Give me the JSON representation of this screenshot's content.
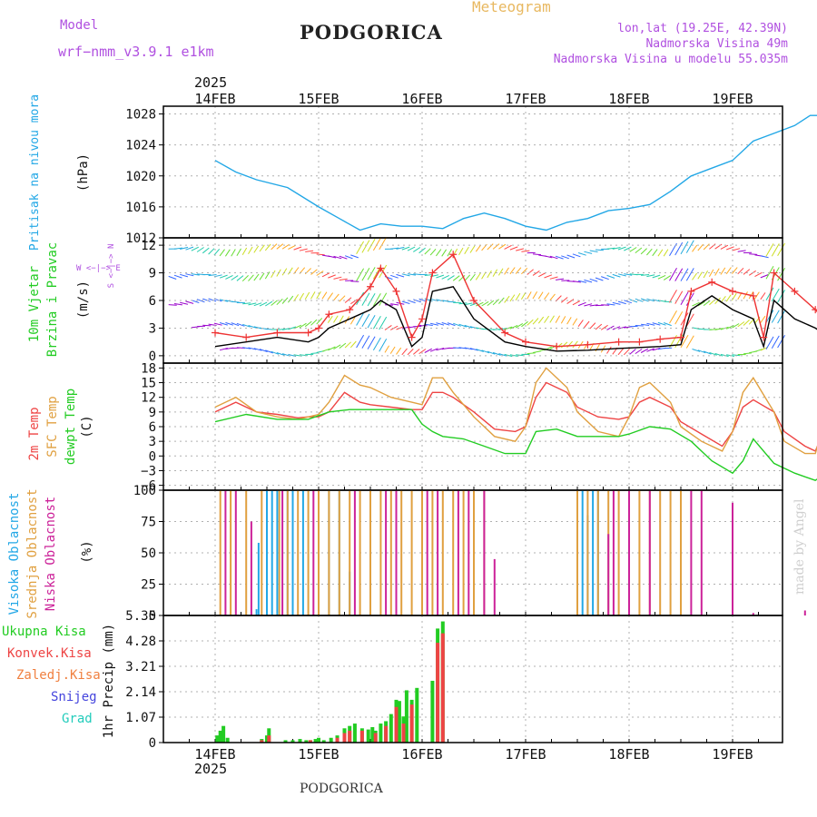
{
  "header": {
    "model_label": "Model",
    "model_name": "wrf−nmm_v3.9.1  e1km",
    "station": "PODGORICA",
    "title": "Meteogram",
    "lonlat": "lon,lat (19.25E, 42.39N)",
    "altitude": "Nadmorska Visina 49m",
    "model_altitude": "Nadmorska Visina u modelu 55.035m",
    "year_top": "2025",
    "year_bottom": "2025",
    "station_bottom": "PODGORICA",
    "credit": "made by Angel",
    "dates": [
      "14FEB",
      "15FEB",
      "16FEB",
      "17FEB",
      "18FEB",
      "19FEB"
    ]
  },
  "colors": {
    "pressure": "#22a7e6",
    "t2m": "#ee4444",
    "sfc": "#e0a040",
    "dewpt": "#22cc22",
    "wind_speed": "#000000",
    "gust": "#ee3333",
    "high_cloud": "#22a7e6",
    "mid_cloud": "#e0a040",
    "low_cloud": "#cc2299",
    "total_precip": "#22cc22",
    "conv_precip": "#ee4444",
    "frz": "#f08040",
    "snow": "#4444dd",
    "grad": "#22ccbb",
    "title_orange": "#e8b860",
    "violet": "#b050e0"
  },
  "chart_data": [
    {
      "type": "line",
      "name": "pressure",
      "ylabel_lines": [
        "Pritisak na nivou mora",
        "(hPa)"
      ],
      "ylim": [
        1012,
        1029
      ],
      "yticks": [
        1012,
        1016,
        1020,
        1024,
        1028
      ],
      "grid": true,
      "series": [
        {
          "x": [
            0,
            0.2,
            0.4,
            0.7,
            1.0,
            1.2,
            1.4,
            1.6,
            1.8,
            2.0,
            2.2,
            2.4,
            2.6,
            2.8,
            3.0,
            3.2,
            3.4,
            3.6,
            3.8,
            4.0,
            4.2,
            4.4,
            4.6,
            4.8,
            5.0,
            5.2,
            5.4,
            5.6,
            5.75,
            5.9,
            6.0
          ],
          "y": [
            1022,
            1020.5,
            1019.5,
            1018.5,
            1016,
            1014.5,
            1013,
            1013.8,
            1013.5,
            1013.5,
            1013.2,
            1014.5,
            1015.2,
            1014.5,
            1013.5,
            1013,
            1014,
            1014.5,
            1015.5,
            1015.8,
            1016.3,
            1018,
            1020,
            1021,
            1022,
            1024.5,
            1025.5,
            1026.5,
            1027.8,
            1027.8,
            1027
          ]
        }
      ]
    },
    {
      "type": "line",
      "name": "wind",
      "ylabel_lines": [
        "10m Vjetar",
        "Brzina i Pravac",
        "(m/s)"
      ],
      "compass": "W <−|−> E",
      "compass_vertical": "S <−|−> N",
      "ylim": [
        -0.8,
        12.8
      ],
      "yticks": [
        0,
        3,
        6,
        9,
        12
      ],
      "grid": true,
      "series": [
        {
          "name": "speed",
          "x": [
            0,
            0.3,
            0.6,
            0.9,
            1.0,
            1.1,
            1.3,
            1.5,
            1.6,
            1.75,
            1.9,
            2.0,
            2.1,
            2.3,
            2.5,
            2.8,
            3.0,
            3.3,
            3.6,
            3.9,
            4.1,
            4.3,
            4.5,
            4.6,
            4.8,
            5.0,
            5.2,
            5.3,
            5.4,
            5.6,
            5.8,
            6.0
          ],
          "y": [
            1,
            1.5,
            2,
            1.5,
            2,
            3,
            4,
            5,
            6,
            5,
            1,
            2,
            7,
            7.5,
            4,
            1.5,
            1,
            0.5,
            0.6,
            0.8,
            0.9,
            1.0,
            1.2,
            5,
            6.5,
            5,
            4,
            1,
            6,
            4,
            3,
            1.5
          ]
        },
        {
          "name": "gust",
          "x": [
            0,
            0.3,
            0.6,
            0.9,
            1.0,
            1.1,
            1.3,
            1.5,
            1.6,
            1.75,
            1.9,
            2.0,
            2.1,
            2.3,
            2.5,
            2.8,
            3.0,
            3.3,
            3.6,
            3.9,
            4.1,
            4.3,
            4.5,
            4.6,
            4.8,
            5.0,
            5.2,
            5.3,
            5.4,
            5.6,
            5.8,
            6.0
          ],
          "y": [
            2.5,
            2,
            2.5,
            2.5,
            3,
            4.5,
            5,
            7.5,
            9.5,
            7,
            2,
            4,
            9,
            11,
            6,
            2.5,
            1.5,
            1,
            1.2,
            1.5,
            1.5,
            1.8,
            2,
            7,
            8,
            7,
            6.5,
            2,
            9,
            7,
            5,
            2.5
          ]
        }
      ]
    },
    {
      "type": "line",
      "name": "temperature",
      "ylabel_lines": [
        "2m Temp",
        "SFC Temp",
        "dewpt Temp",
        "(C)"
      ],
      "ylim": [
        -7,
        19
      ],
      "yticks": [
        -6,
        -3,
        0,
        3,
        6,
        9,
        12,
        15,
        18
      ],
      "grid": true,
      "series": [
        {
          "name": "2m Temp",
          "x": [
            0,
            0.2,
            0.4,
            0.6,
            0.8,
            0.9,
            1.0,
            1.1,
            1.25,
            1.4,
            1.5,
            1.7,
            1.9,
            2.0,
            2.1,
            2.2,
            2.3,
            2.5,
            2.7,
            2.9,
            3.0,
            3.1,
            3.2,
            3.4,
            3.5,
            3.7,
            3.9,
            4.0,
            4.1,
            4.2,
            4.4,
            4.5,
            4.7,
            4.9,
            5.0,
            5.1,
            5.2,
            5.4,
            5.5,
            5.7,
            5.8,
            5.9,
            6.0
          ],
          "y": [
            9,
            11,
            9,
            8.5,
            7.8,
            8,
            8,
            9,
            13,
            11,
            10.5,
            10,
            9.5,
            9.5,
            13,
            13,
            12,
            9,
            5.5,
            5,
            6,
            12,
            15,
            13,
            10,
            8,
            7.5,
            8,
            11,
            12,
            10,
            7,
            4.5,
            2,
            5,
            10,
            11.5,
            9,
            5,
            2,
            1,
            6,
            9.5
          ]
        },
        {
          "name": "SFC Temp",
          "x": [
            0,
            0.2,
            0.4,
            0.6,
            0.8,
            0.9,
            1.0,
            1.1,
            1.25,
            1.4,
            1.5,
            1.7,
            1.9,
            2.0,
            2.1,
            2.2,
            2.3,
            2.5,
            2.7,
            2.9,
            3.0,
            3.1,
            3.2,
            3.4,
            3.5,
            3.7,
            3.9,
            4.0,
            4.1,
            4.2,
            4.4,
            4.5,
            4.7,
            4.9,
            5.0,
            5.1,
            5.2,
            5.4,
            5.5,
            5.7,
            5.8,
            5.9,
            6.0
          ],
          "y": [
            10,
            12,
            9,
            8,
            7.5,
            8,
            8.5,
            11,
            16.5,
            14.5,
            14,
            12,
            11,
            10.5,
            16,
            16,
            13,
            8,
            4,
            3,
            6,
            15,
            18,
            14,
            9,
            5,
            4,
            8,
            14,
            15,
            11,
            6,
            3,
            1,
            5,
            13,
            16,
            9,
            3,
            0.5,
            0.5,
            8,
            14.5
          ]
        },
        {
          "name": "dewpt Temp",
          "x": [
            0,
            0.3,
            0.6,
            0.9,
            1.1,
            1.3,
            1.5,
            1.7,
            1.9,
            2.0,
            2.1,
            2.2,
            2.4,
            2.6,
            2.8,
            3.0,
            3.1,
            3.3,
            3.5,
            3.7,
            3.9,
            4.0,
            4.2,
            4.4,
            4.6,
            4.8,
            5.0,
            5.1,
            5.2,
            5.4,
            5.6,
            5.8,
            6.0
          ],
          "y": [
            7,
            8.5,
            7.5,
            7.5,
            9,
            9.5,
            9.5,
            9.5,
            9.5,
            6.5,
            5,
            4,
            3.5,
            2,
            0.5,
            0.5,
            5,
            5.5,
            4,
            4,
            4,
            4.5,
            6,
            5.5,
            3,
            -1,
            -3.5,
            -1,
            3.5,
            -1.5,
            -3.5,
            -5,
            -2
          ]
        }
      ]
    },
    {
      "type": "bar",
      "name": "cloud",
      "ylabel_lines": [
        "Visoka Oblacnost",
        "Srednja Oblacnost",
        "Niska Oblacnost",
        "(%)"
      ],
      "ylim": [
        0,
        100
      ],
      "yticks": [
        0,
        25,
        50,
        75,
        100
      ],
      "grid": true,
      "series": [
        {
          "name": "Visoka Oblacnost",
          "x": [
            0.4,
            0.42,
            0.5,
            0.55,
            0.6,
            0.7,
            0.75,
            0.85,
            1.1,
            1.2,
            1.3,
            3.55,
            3.6,
            3.65,
            3.7
          ],
          "y": [
            5,
            58,
            100,
            100,
            100,
            100,
            100,
            100,
            100,
            100,
            35,
            100,
            80,
            100,
            100
          ]
        },
        {
          "name": "Srednja Oblacnost",
          "x": [
            0.05,
            0.15,
            0.3,
            0.45,
            0.62,
            0.7,
            0.8,
            0.9,
            1.0,
            1.1,
            1.2,
            1.3,
            1.4,
            1.5,
            1.6,
            1.7,
            1.8,
            1.9,
            2.0,
            2.1,
            2.2,
            2.3,
            2.4,
            2.5,
            2.6,
            3.5,
            3.6,
            3.7,
            3.8,
            3.9,
            4.0,
            4.1,
            4.2,
            4.3,
            4.4,
            4.5
          ],
          "y": [
            100,
            100,
            100,
            100,
            100,
            100,
            100,
            100,
            100,
            100,
            100,
            100,
            100,
            100,
            100,
            100,
            100,
            100,
            100,
            100,
            100,
            100,
            100,
            100,
            100,
            100,
            100,
            100,
            100,
            100,
            100,
            100,
            100,
            100,
            100,
            100
          ]
        },
        {
          "name": "Niska Oblacnost",
          "x": [
            0.1,
            0.2,
            0.35,
            0.65,
            0.95,
            1.35,
            1.65,
            1.75,
            2.05,
            2.15,
            2.35,
            2.45,
            2.6,
            2.7,
            3.8,
            3.85,
            4.0,
            4.2,
            4.6,
            4.7,
            5.0,
            5.2,
            5.7
          ],
          "y": [
            100,
            100,
            75,
            100,
            100,
            100,
            100,
            100,
            100,
            100,
            100,
            100,
            100,
            45,
            65,
            100,
            100,
            100,
            100,
            100,
            90,
            2,
            4
          ]
        }
      ]
    },
    {
      "type": "bar",
      "name": "precipitation",
      "ylabel_lines": [
        "1hr Precip (mm)"
      ],
      "legend": [
        "Ukupna Kisa",
        "Konvek.Kisa",
        "Zaledj.Kisa",
        "Snijeg",
        "Grad"
      ],
      "ylim": [
        0,
        5.35
      ],
      "yticks": [
        0,
        1.07,
        2.14,
        3.21,
        4.28,
        5.35
      ],
      "ytick_labels": [
        "0",
        "1.07",
        "2.14",
        "3.21",
        "4.28",
        "5.35"
      ],
      "grid": true,
      "series": [
        {
          "name": "Ukupna Kisa",
          "x": [
            0.02,
            0.05,
            0.08,
            0.12,
            0.45,
            0.5,
            0.52,
            0.68,
            0.75,
            0.82,
            0.88,
            0.92,
            0.97,
            1.0,
            1.05,
            1.12,
            1.18,
            1.25,
            1.3,
            1.35,
            1.42,
            1.48,
            1.52,
            1.55,
            1.6,
            1.65,
            1.7,
            1.75,
            1.78,
            1.82,
            1.85,
            1.9,
            1.95,
            2.1,
            2.15,
            2.2
          ],
          "y": [
            0.3,
            0.5,
            0.7,
            0.2,
            0.15,
            0.3,
            0.6,
            0.1,
            0.1,
            0.15,
            0.1,
            0.1,
            0.15,
            0.2,
            0.1,
            0.2,
            0.3,
            0.6,
            0.7,
            0.8,
            0.6,
            0.55,
            0.65,
            0.5,
            0.8,
            0.9,
            1.2,
            1.8,
            1.75,
            1.1,
            2.2,
            1.8,
            2.3,
            2.6,
            4.8,
            5.1
          ]
        },
        {
          "name": "Konvek.Kisa",
          "x": [
            0.45,
            0.52,
            0.92,
            1.18,
            1.25,
            1.3,
            1.42,
            1.55,
            1.65,
            1.75,
            1.82,
            1.9,
            2.15,
            2.2
          ],
          "y": [
            0.1,
            0.3,
            0.1,
            0.2,
            0.4,
            0.5,
            0.5,
            0.4,
            0.7,
            1.5,
            0.8,
            1.6,
            4.2,
            4.6
          ]
        }
      ]
    }
  ]
}
